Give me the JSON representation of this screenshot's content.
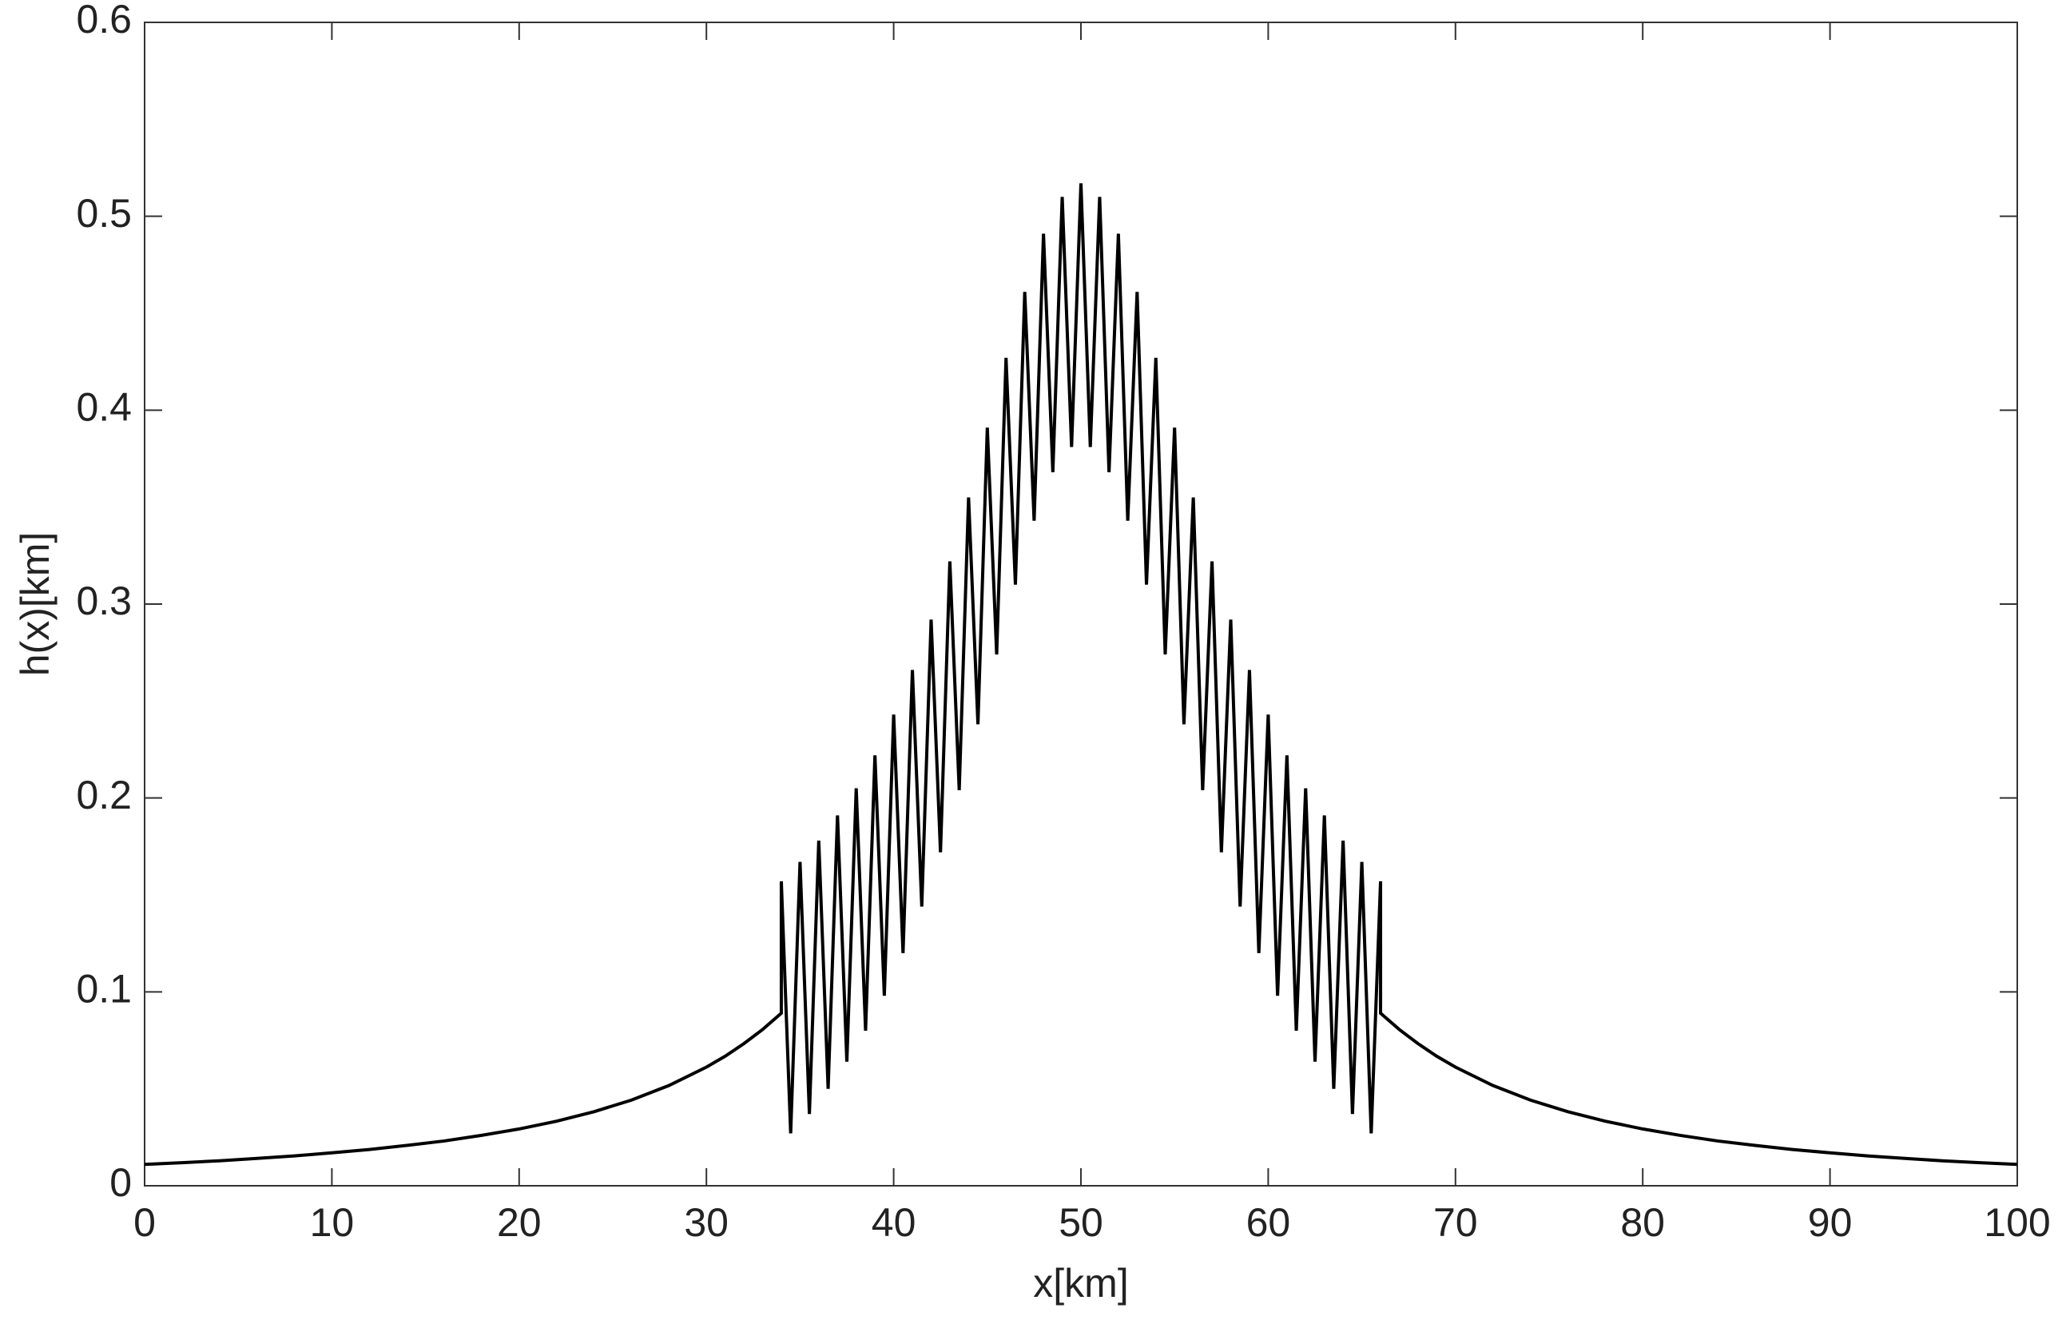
{
  "chart_data": {
    "type": "line",
    "xlabel": "x[km]",
    "ylabel": "h(x)[km]",
    "x": [
      0,
      2,
      4,
      6,
      8,
      10,
      12,
      14,
      16,
      18,
      20,
      22,
      24,
      26,
      28,
      30,
      31,
      32,
      33,
      34,
      34,
      34.5,
      35,
      35.5,
      36,
      36.5,
      37,
      37.5,
      38,
      38.5,
      39,
      39.5,
      40,
      40.5,
      41,
      41.5,
      42,
      42.5,
      43,
      43.5,
      44,
      44.5,
      45,
      45.5,
      46,
      46.5,
      47,
      47.5,
      48,
      48.5,
      49,
      49.5,
      50,
      50.5,
      51,
      51.5,
      52,
      52.5,
      53,
      53.5,
      54,
      54.5,
      55,
      55.5,
      56,
      56.5,
      57,
      57.5,
      58,
      58.5,
      59,
      59.5,
      60,
      60.5,
      61,
      61.5,
      62,
      62.5,
      63,
      63.5,
      64,
      64.5,
      65,
      65.5,
      66,
      66,
      67,
      68,
      69,
      70,
      72,
      74,
      76,
      78,
      80,
      82,
      84,
      86,
      88,
      90,
      92,
      94,
      96,
      98,
      100
    ],
    "values": [
      0.011,
      0.0119,
      0.0129,
      0.0141,
      0.0154,
      0.017,
      0.0187,
      0.0208,
      0.0231,
      0.026,
      0.0293,
      0.0333,
      0.0382,
      0.0442,
      0.0517,
      0.0612,
      0.0668,
      0.0733,
      0.0806,
      0.089,
      0.157,
      0.027,
      0.167,
      0.037,
      0.178,
      0.05,
      0.191,
      0.064,
      0.205,
      0.08,
      0.222,
      0.098,
      0.243,
      0.12,
      0.266,
      0.144,
      0.292,
      0.172,
      0.322,
      0.204,
      0.355,
      0.238,
      0.391,
      0.274,
      0.427,
      0.31,
      0.461,
      0.343,
      0.491,
      0.368,
      0.51,
      0.381,
      0.517,
      0.381,
      0.51,
      0.368,
      0.491,
      0.343,
      0.461,
      0.31,
      0.427,
      0.274,
      0.391,
      0.238,
      0.355,
      0.204,
      0.322,
      0.172,
      0.292,
      0.144,
      0.266,
      0.12,
      0.243,
      0.098,
      0.222,
      0.08,
      0.205,
      0.064,
      0.191,
      0.05,
      0.178,
      0.037,
      0.167,
      0.027,
      0.157,
      0.089,
      0.0806,
      0.0733,
      0.0668,
      0.0612,
      0.0517,
      0.0442,
      0.0382,
      0.0333,
      0.0293,
      0.026,
      0.0231,
      0.0208,
      0.0187,
      0.017,
      0.0154,
      0.0141,
      0.0129,
      0.0119,
      0.011
    ],
    "color": "#000000",
    "xlim": [
      0,
      100
    ],
    "xticks": [
      0,
      10,
      20,
      30,
      40,
      50,
      60,
      70,
      80,
      90,
      100
    ],
    "ylim": [
      0,
      0.6
    ],
    "yticks": [
      0,
      0.1,
      0.2,
      0.3,
      0.4,
      0.5,
      0.6
    ],
    "grid": false
  }
}
